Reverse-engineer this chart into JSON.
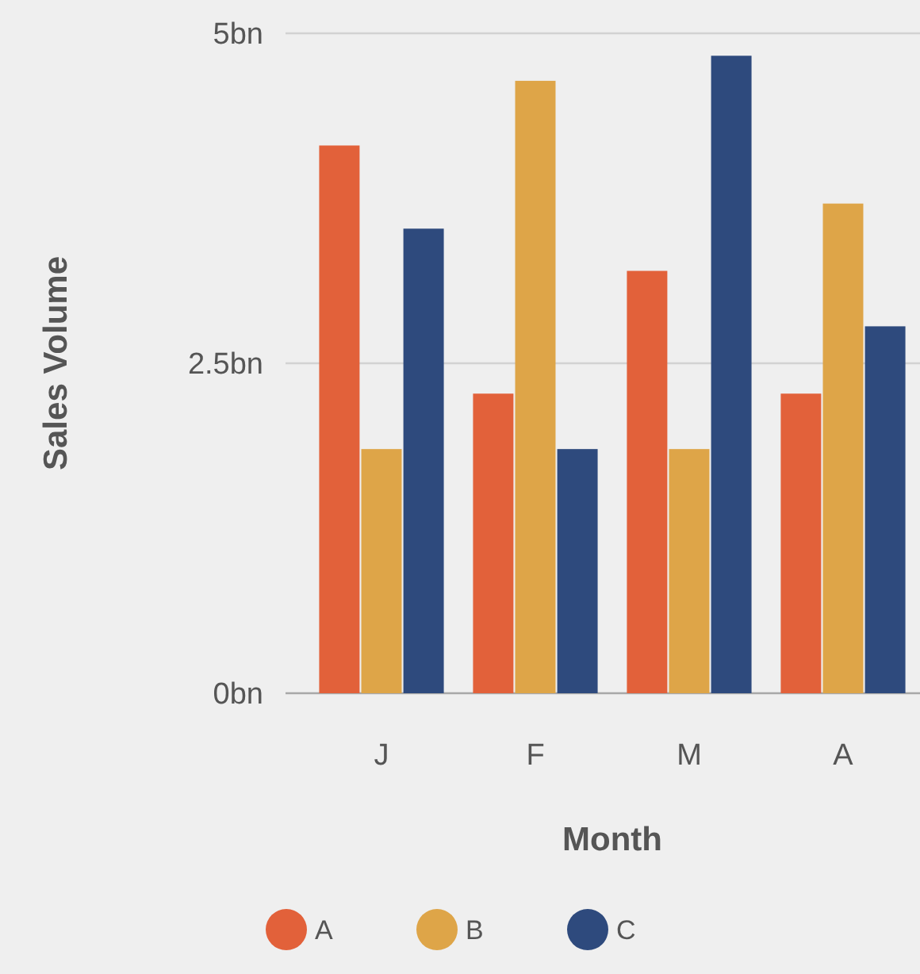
{
  "chart_data": {
    "type": "bar",
    "xlabel": "Month",
    "ylabel": "Sales Volume",
    "categories": [
      "J",
      "F",
      "M",
      "A"
    ],
    "series": [
      {
        "name": "A",
        "color": "#e2613a",
        "values": [
          4.15,
          2.27,
          3.2,
          2.27
        ]
      },
      {
        "name": "B",
        "color": "#dea548",
        "values": [
          1.85,
          4.64,
          1.85,
          3.71
        ]
      },
      {
        "name": "C",
        "color": "#2e4a7d",
        "values": [
          3.52,
          1.85,
          4.83,
          2.78
        ]
      }
    ],
    "ylim": [
      0,
      5
    ],
    "yticks": [
      {
        "value": 0,
        "label": "0bn"
      },
      {
        "value": 2.5,
        "label": "2.5bn"
      },
      {
        "value": 5,
        "label": "5bn"
      }
    ],
    "grid": "y",
    "legend": "bottom"
  }
}
